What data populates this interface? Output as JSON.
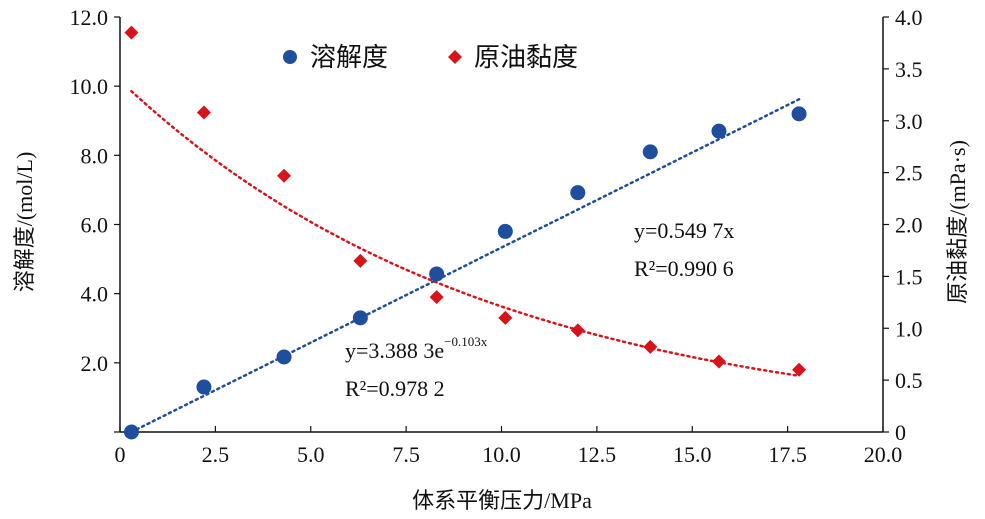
{
  "chart_data": {
    "type": "scatter",
    "title": "",
    "xlabel": "体系平衡压力/MPa",
    "ylabel_left": "溶解度/(mol/L)",
    "ylabel_right": "原油黏度/(mPa·s)",
    "xlim": [
      0,
      20
    ],
    "ylim_left": [
      0,
      12
    ],
    "ylim_right": [
      0,
      4
    ],
    "x_ticks": [
      "0",
      "2.5",
      "5.0",
      "7.5",
      "10.0",
      "12.5",
      "15.0",
      "17.5",
      "20.0"
    ],
    "y_left_ticks": [
      "2.0",
      "4.0",
      "6.0",
      "8.0",
      "10.0",
      "12.0"
    ],
    "y_right_ticks": [
      "0",
      "0.5",
      "1.0",
      "1.5",
      "2.0",
      "2.5",
      "3.0",
      "3.5",
      "4.0"
    ],
    "grid": false,
    "legend_position": "top",
    "series": [
      {
        "name": "溶解度",
        "axis": "left",
        "marker": "circle",
        "color": "#1f4e9c",
        "x": [
          0.3,
          2.2,
          4.3,
          6.3,
          8.3,
          10.1,
          12.0,
          13.9,
          15.7,
          17.8
        ],
        "y": [
          0.0,
          1.3,
          2.17,
          3.3,
          4.57,
          5.8,
          6.92,
          8.1,
          8.7,
          9.2
        ]
      },
      {
        "name": "原油黏度",
        "axis": "right",
        "marker": "diamond",
        "color": "#d7141a",
        "x": [
          0.3,
          2.2,
          4.3,
          6.3,
          8.3,
          10.1,
          12.0,
          13.9,
          15.7,
          17.8
        ],
        "y": [
          3.85,
          3.08,
          2.47,
          1.65,
          1.3,
          1.1,
          0.98,
          0.82,
          0.68,
          0.6
        ]
      }
    ],
    "fits": [
      {
        "series": "溶解度",
        "kind": "linear",
        "a": 0.5497,
        "color": "#1f4e9c",
        "label_y": "y=0.549 7x",
        "label_r2": "R²=0.990 6"
      },
      {
        "series": "原油黏度",
        "kind": "exponential",
        "a": 3.3883,
        "b": -0.103,
        "color": "#d7141a",
        "label_y_base": "y=3.388 3e",
        "label_y_exp": "−0.103x",
        "label_r2": "R²=0.978 2"
      }
    ]
  }
}
